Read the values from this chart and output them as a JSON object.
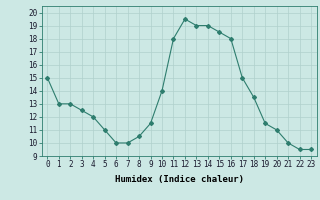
{
  "x": [
    0,
    1,
    2,
    3,
    4,
    5,
    6,
    7,
    8,
    9,
    10,
    11,
    12,
    13,
    14,
    15,
    16,
    17,
    18,
    19,
    20,
    21,
    22,
    23
  ],
  "y": [
    15,
    13,
    13,
    12.5,
    12,
    11,
    10,
    10,
    10.5,
    11.5,
    14,
    18,
    19.5,
    19,
    19,
    18.5,
    18,
    15,
    13.5,
    11.5,
    11,
    10,
    9.5,
    9.5
  ],
  "line_color": "#2e7d6e",
  "marker": "D",
  "marker_size": 2,
  "bg_color": "#cce8e4",
  "grid_color": "#b0d0cc",
  "xlabel": "Humidex (Indice chaleur)",
  "xlim": [
    -0.5,
    23.5
  ],
  "ylim": [
    9,
    20.5
  ],
  "yticks": [
    9,
    10,
    11,
    12,
    13,
    14,
    15,
    16,
    17,
    18,
    19,
    20
  ],
  "xticks": [
    0,
    1,
    2,
    3,
    4,
    5,
    6,
    7,
    8,
    9,
    10,
    11,
    12,
    13,
    14,
    15,
    16,
    17,
    18,
    19,
    20,
    21,
    22,
    23
  ],
  "xlabel_fontsize": 6.5,
  "tick_fontsize": 5.5
}
